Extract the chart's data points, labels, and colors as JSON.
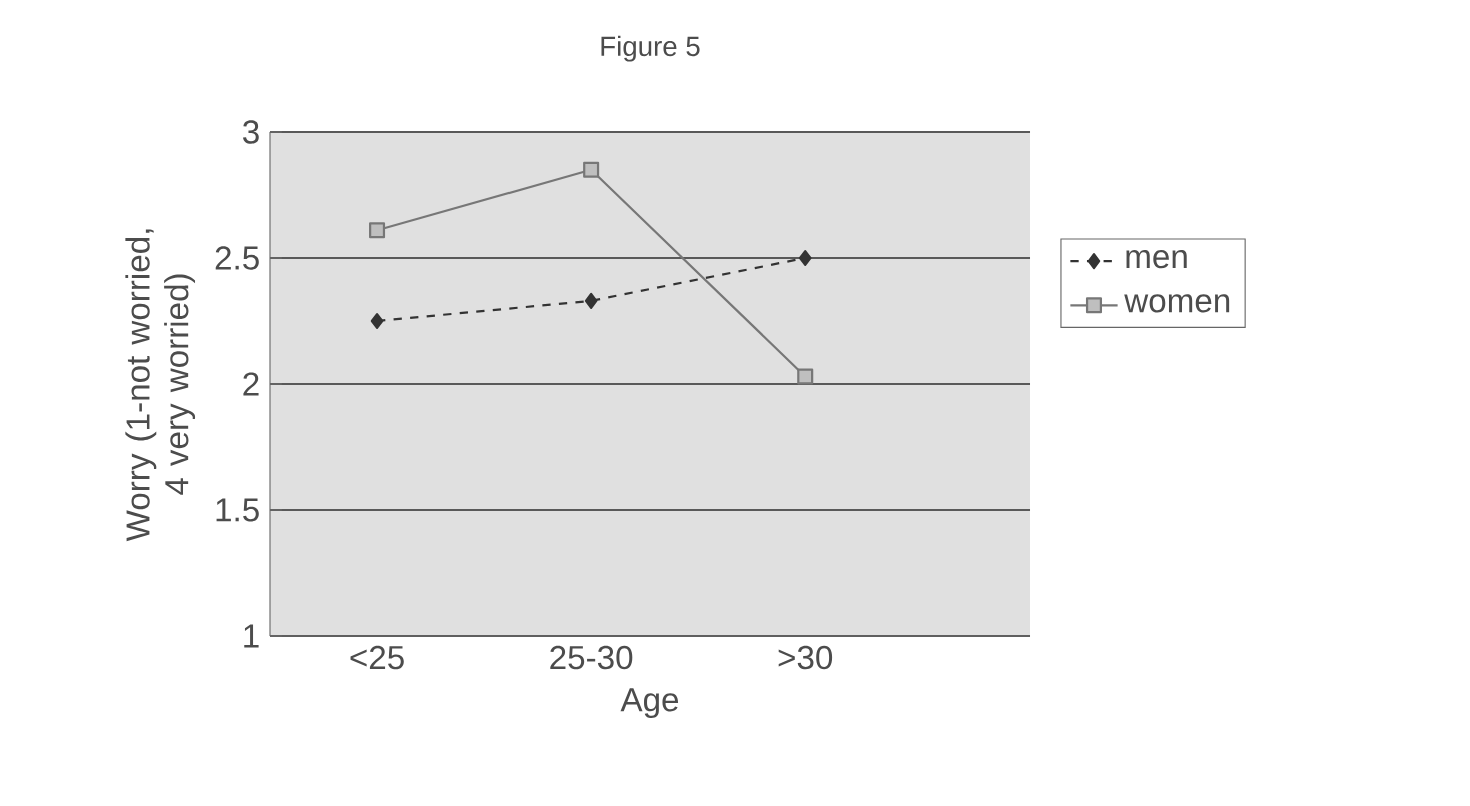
{
  "chart_data": {
    "type": "line",
    "title": "Figure 5",
    "xlabel": "Age",
    "ylabel": "Worry (1-not worried, 4 very worried)",
    "categories": [
      "<25",
      "25-30",
      ">30"
    ],
    "series": [
      {
        "name": "men",
        "color": "#333333",
        "values": [
          2.25,
          2.33,
          2.5
        ],
        "line_style": "dashed",
        "marker": "diamond"
      },
      {
        "name": "women",
        "color": "#777777",
        "values": [
          2.61,
          2.85,
          2.03
        ],
        "line_style": "solid",
        "marker": "square"
      }
    ],
    "ylim": [
      1,
      3
    ],
    "yticks": [
      1,
      1.5,
      2,
      2.5,
      3
    ],
    "grid": "y",
    "legend": "right"
  }
}
